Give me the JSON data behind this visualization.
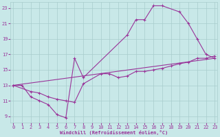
{
  "xlabel": "Windchill (Refroidissement éolien,°C)",
  "bg_color": "#c8e8e8",
  "grid_color": "#a8cccc",
  "line_color": "#993399",
  "xlim": [
    -0.3,
    23.3
  ],
  "ylim": [
    8.2,
    23.8
  ],
  "xticks": [
    0,
    1,
    2,
    3,
    4,
    5,
    6,
    7,
    8,
    9,
    10,
    11,
    12,
    13,
    14,
    15,
    16,
    17,
    18,
    19,
    20,
    21,
    22,
    23
  ],
  "yticks": [
    9,
    11,
    13,
    15,
    17,
    19,
    21,
    23
  ],
  "line1_x": [
    0,
    1,
    2,
    3,
    4,
    5,
    6,
    7,
    8,
    13,
    14,
    15,
    16,
    17,
    19,
    20,
    21,
    22,
    23
  ],
  "line1_y": [
    13.0,
    13.0,
    11.5,
    11.0,
    10.5,
    9.2,
    8.8,
    16.5,
    14.0,
    19.5,
    21.5,
    21.5,
    23.3,
    23.3,
    22.5,
    21.0,
    19.0,
    17.0,
    16.5
  ],
  "line2_x": [
    0,
    2,
    3,
    4,
    5,
    6,
    7,
    8,
    10,
    11,
    12,
    13,
    14,
    15,
    16,
    17,
    18,
    19,
    20,
    21,
    22,
    23
  ],
  "line2_y": [
    13.0,
    12.2,
    12.0,
    11.5,
    11.2,
    11.0,
    10.8,
    13.2,
    14.5,
    14.5,
    14.0,
    14.2,
    14.8,
    14.8,
    15.0,
    15.2,
    15.5,
    15.8,
    16.0,
    16.5,
    16.5,
    16.8
  ],
  "line3_x": [
    0,
    23
  ],
  "line3_y": [
    13.0,
    16.5
  ]
}
